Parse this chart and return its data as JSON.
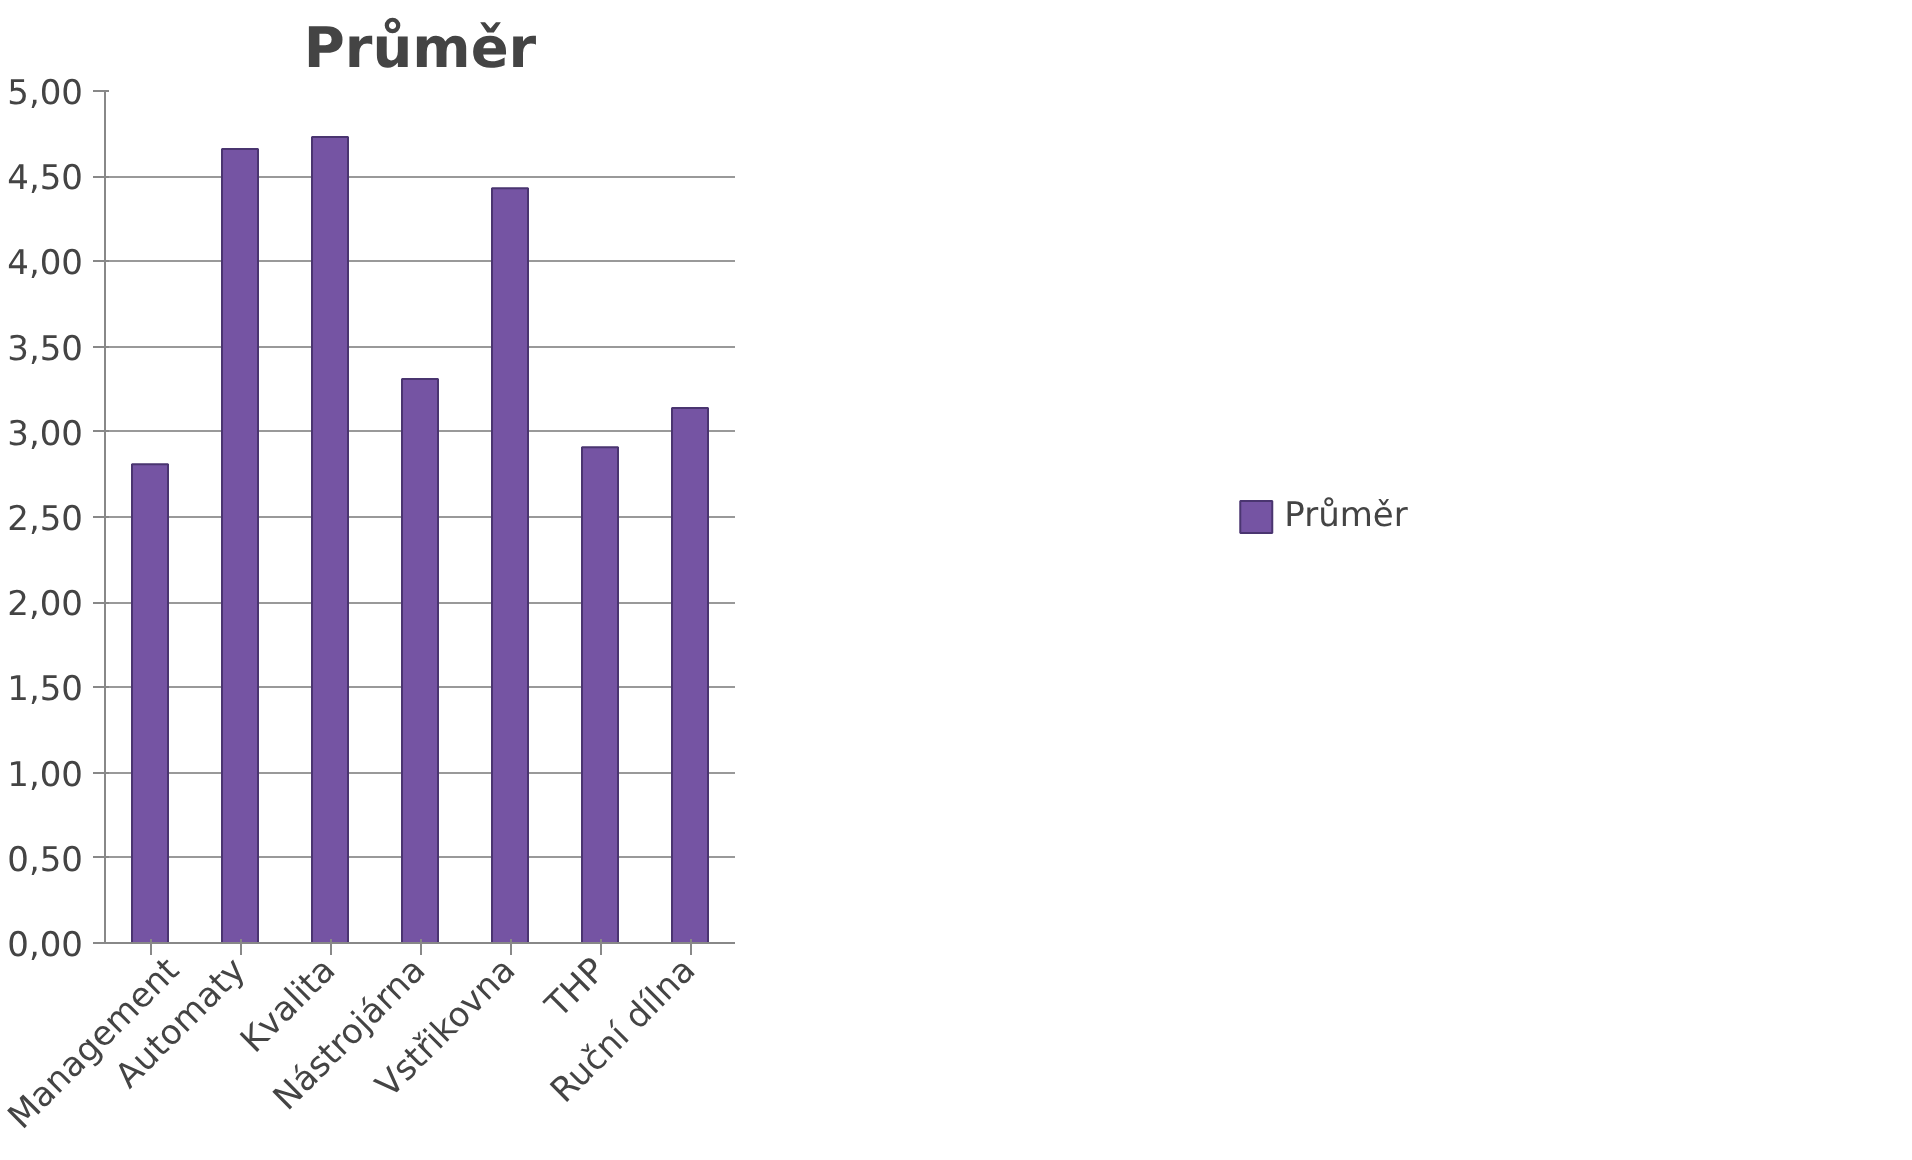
{
  "chart_data": {
    "type": "bar",
    "title": "Průměr",
    "categories": [
      "Management",
      "Automaty",
      "Kvalita",
      "Nástrojárna",
      "Vstřikovna",
      "THP",
      "Ruční dílna"
    ],
    "series": [
      {
        "name": "Průměr",
        "color": "#7554a3",
        "values": [
          2.81,
          4.66,
          4.73,
          3.31,
          4.43,
          2.91,
          3.14
        ]
      }
    ],
    "ylim": [
      0,
      5
    ],
    "yticks": [
      {
        "value": 0,
        "label": "0,00"
      },
      {
        "value": 0.5,
        "label": "0,50"
      },
      {
        "value": 1,
        "label": "1,00"
      },
      {
        "value": 1.5,
        "label": "1,50"
      },
      {
        "value": 2,
        "label": "2,00"
      },
      {
        "value": 2.5,
        "label": "2,50"
      },
      {
        "value": 3,
        "label": "3,00"
      },
      {
        "value": 3.5,
        "label": "3,50"
      },
      {
        "value": 4,
        "label": "4,00"
      },
      {
        "value": 4.5,
        "label": "4,50"
      },
      {
        "value": 5,
        "label": "5,00"
      }
    ],
    "grid": "y",
    "legend": "right"
  }
}
